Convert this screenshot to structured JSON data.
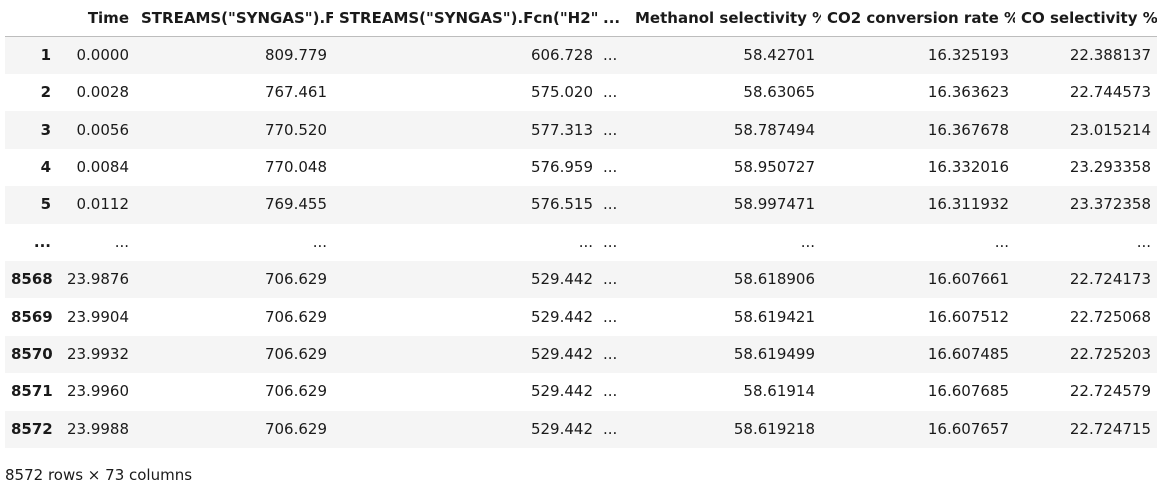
{
  "columns": {
    "index": "",
    "time": "Time",
    "syngas_f": "STREAMS(\"SYNGAS\").F",
    "syngas_fcn_h2": "STREAMS(\"SYNGAS\").Fcn(\"H2\")",
    "ellipsis": "...",
    "methanol_sel": "Methanol selectivity %",
    "co2_conv": "CO2 conversion rate %",
    "co_sel": "CO selectivity %"
  },
  "rows": [
    {
      "index": "1",
      "time": "0.0000",
      "syngas_f": "809.779",
      "syngas_fcn_h2": "606.728",
      "ellipsis": "...",
      "methanol_sel": "58.42701",
      "co2_conv": "16.325193",
      "co_sel": "22.388137"
    },
    {
      "index": "2",
      "time": "0.0028",
      "syngas_f": "767.461",
      "syngas_fcn_h2": "575.020",
      "ellipsis": "...",
      "methanol_sel": "58.63065",
      "co2_conv": "16.363623",
      "co_sel": "22.744573"
    },
    {
      "index": "3",
      "time": "0.0056",
      "syngas_f": "770.520",
      "syngas_fcn_h2": "577.313",
      "ellipsis": "...",
      "methanol_sel": "58.787494",
      "co2_conv": "16.367678",
      "co_sel": "23.015214"
    },
    {
      "index": "4",
      "time": "0.0084",
      "syngas_f": "770.048",
      "syngas_fcn_h2": "576.959",
      "ellipsis": "...",
      "methanol_sel": "58.950727",
      "co2_conv": "16.332016",
      "co_sel": "23.293358"
    },
    {
      "index": "5",
      "time": "0.0112",
      "syngas_f": "769.455",
      "syngas_fcn_h2": "576.515",
      "ellipsis": "...",
      "methanol_sel": "58.997471",
      "co2_conv": "16.311932",
      "co_sel": "23.372358"
    },
    {
      "index": "...",
      "time": "...",
      "syngas_f": "...",
      "syngas_fcn_h2": "...",
      "ellipsis": "...",
      "methanol_sel": "...",
      "co2_conv": "...",
      "co_sel": "..."
    },
    {
      "index": "8568",
      "time": "23.9876",
      "syngas_f": "706.629",
      "syngas_fcn_h2": "529.442",
      "ellipsis": "...",
      "methanol_sel": "58.618906",
      "co2_conv": "16.607661",
      "co_sel": "22.724173"
    },
    {
      "index": "8569",
      "time": "23.9904",
      "syngas_f": "706.629",
      "syngas_fcn_h2": "529.442",
      "ellipsis": "...",
      "methanol_sel": "58.619421",
      "co2_conv": "16.607512",
      "co_sel": "22.725068"
    },
    {
      "index": "8570",
      "time": "23.9932",
      "syngas_f": "706.629",
      "syngas_fcn_h2": "529.442",
      "ellipsis": "...",
      "methanol_sel": "58.619499",
      "co2_conv": "16.607485",
      "co_sel": "22.725203"
    },
    {
      "index": "8571",
      "time": "23.9960",
      "syngas_f": "706.629",
      "syngas_fcn_h2": "529.442",
      "ellipsis": "...",
      "methanol_sel": "58.61914",
      "co2_conv": "16.607685",
      "co_sel": "22.724579"
    },
    {
      "index": "8572",
      "time": "23.9988",
      "syngas_f": "706.629",
      "syngas_fcn_h2": "529.442",
      "ellipsis": "...",
      "methanol_sel": "58.619218",
      "co2_conv": "16.607657",
      "co_sel": "22.724715"
    }
  ],
  "footer": {
    "shape_text": "8572 rows × 73 columns"
  }
}
